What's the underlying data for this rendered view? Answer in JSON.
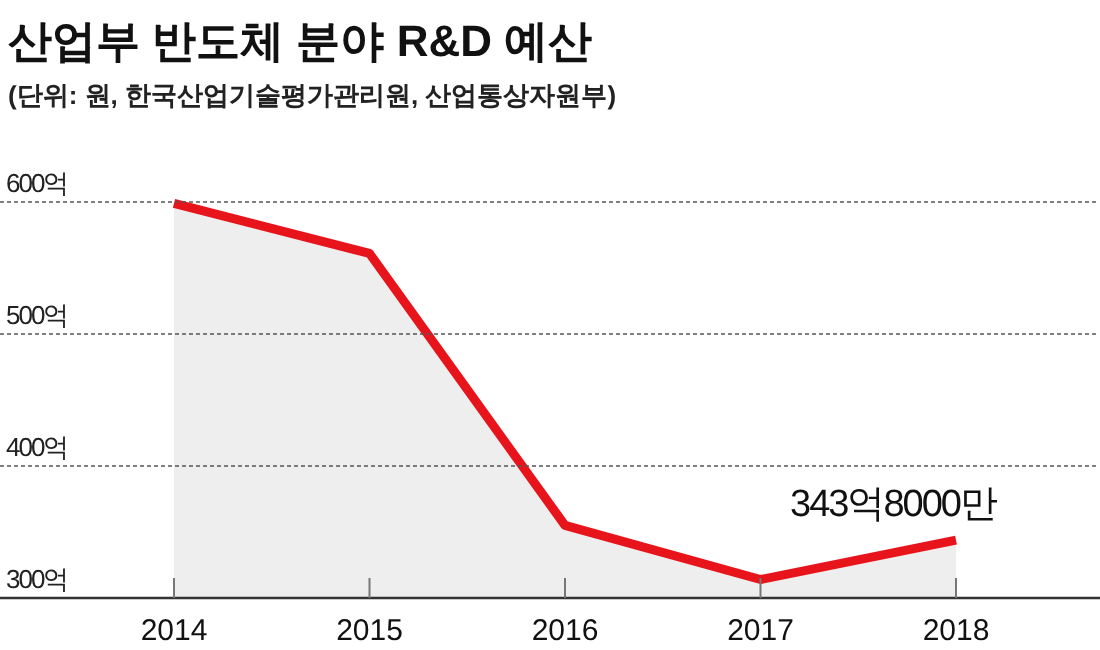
{
  "chart_data": {
    "type": "area",
    "title": "산업부 반도체 분야 R&D 예산",
    "subtitle": "(단위: 원, 한국산업기술평가관리원, 산업통상자원부)",
    "categories": [
      "2014",
      "2015",
      "2016",
      "2017",
      "2018"
    ],
    "series": [
      {
        "color": "#e8141b",
        "values": [
          599,
          561,
          355,
          314,
          343.8
        ]
      }
    ],
    "annotations": [
      {
        "text": "343억8000만",
        "x": "2018",
        "y": 343.8
      }
    ],
    "ylim": [
      300,
      600
    ],
    "yticks": [
      {
        "value": 300,
        "label": "300억"
      },
      {
        "value": 400,
        "label": "400억"
      },
      {
        "value": 500,
        "label": "500억"
      },
      {
        "value": 600,
        "label": "600억"
      }
    ],
    "grid": "y"
  }
}
